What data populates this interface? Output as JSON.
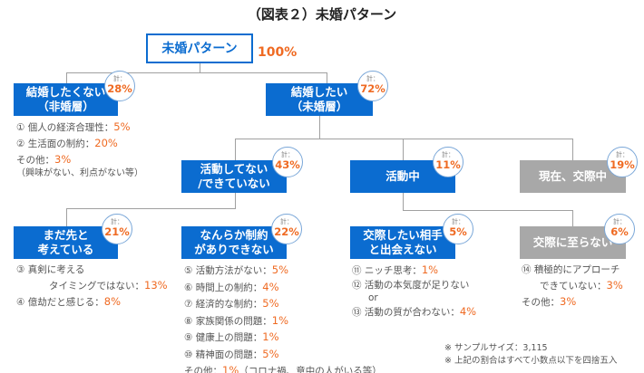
{
  "title": "（図表２）未婚パターン",
  "root": {
    "label": "未婚パターン",
    "percent": "100%"
  },
  "total_label": "計：",
  "nodes": {
    "no_marry": {
      "label": "結婚したくない\n（非婚層）",
      "percent": "28%"
    },
    "want_marry": {
      "label": "結婚したい\n（未婚層）",
      "percent": "72%"
    },
    "inactive": {
      "label": "活動してない\n/できていない",
      "percent": "43%"
    },
    "active": {
      "label": "活動中",
      "percent": "11%"
    },
    "dating": {
      "label": "現在、交際中",
      "percent": "19%"
    },
    "not_yet": {
      "label": "まだ先と\n考えている",
      "percent": "21%"
    },
    "constraint": {
      "label": "なんらか制約\nがありできない",
      "percent": "22%"
    },
    "no_match": {
      "label": "交際したい相手\nと出会えない",
      "percent": "5%"
    },
    "no_relationship": {
      "label": "交際に至らない",
      "percent": "6%"
    }
  },
  "lists": {
    "no_marry": [
      {
        "text": "① 個人の経済合理性：",
        "pct": "5%"
      },
      {
        "text": "② 生活面の制約：",
        "pct": "20%"
      },
      {
        "text": "その他：",
        "pct": "3%"
      },
      {
        "text": "（興味がない、利点がない等）",
        "pct": ""
      }
    ],
    "not_yet": [
      {
        "text": "③ 真剣に考える",
        "pct": ""
      },
      {
        "text": "タイミングではない：",
        "pct": "13%"
      },
      {
        "text": "④ 億劫だと感じる：",
        "pct": "8%"
      }
    ],
    "constraint": [
      {
        "text": "⑤ 活動方法がない：",
        "pct": "5%"
      },
      {
        "text": "⑥ 時間上の制約：",
        "pct": "4%"
      },
      {
        "text": "⑦ 経済的な制約：",
        "pct": "5%"
      },
      {
        "text": "⑧ 家族関係の問題：",
        "pct": "1%"
      },
      {
        "text": "⑨ 健康上の問題：",
        "pct": "1%"
      },
      {
        "text": "⑩ 精神面の問題：",
        "pct": "5%"
      },
      {
        "text": "その他：",
        "pct": "1%",
        "after": "（コロナ禍、意中の人がいる等）"
      }
    ],
    "no_match": [
      {
        "text": "⑪ ニッチ思考：",
        "pct": "1%"
      },
      {
        "text": "⑫ 活動の本気度が足りない",
        "pct": ""
      },
      {
        "text": "or",
        "pct": ""
      },
      {
        "text": "⑬ 活動の質が合わない：",
        "pct": "4%"
      }
    ],
    "no_relationship": [
      {
        "text": "⑭ 積極的にアプローチ",
        "pct": ""
      },
      {
        "text": "できていない：",
        "pct": "3%"
      },
      {
        "text": "その他：",
        "pct": "3%"
      }
    ]
  },
  "footnotes": [
    "※ サンプルサイズ：3,115",
    "※ 上記の割合はすべて小数点以下を四捨五入"
  ],
  "colors": {
    "primary": "#0b6cd0",
    "gray": "#a8a8a8",
    "accent": "#ef6a22"
  }
}
